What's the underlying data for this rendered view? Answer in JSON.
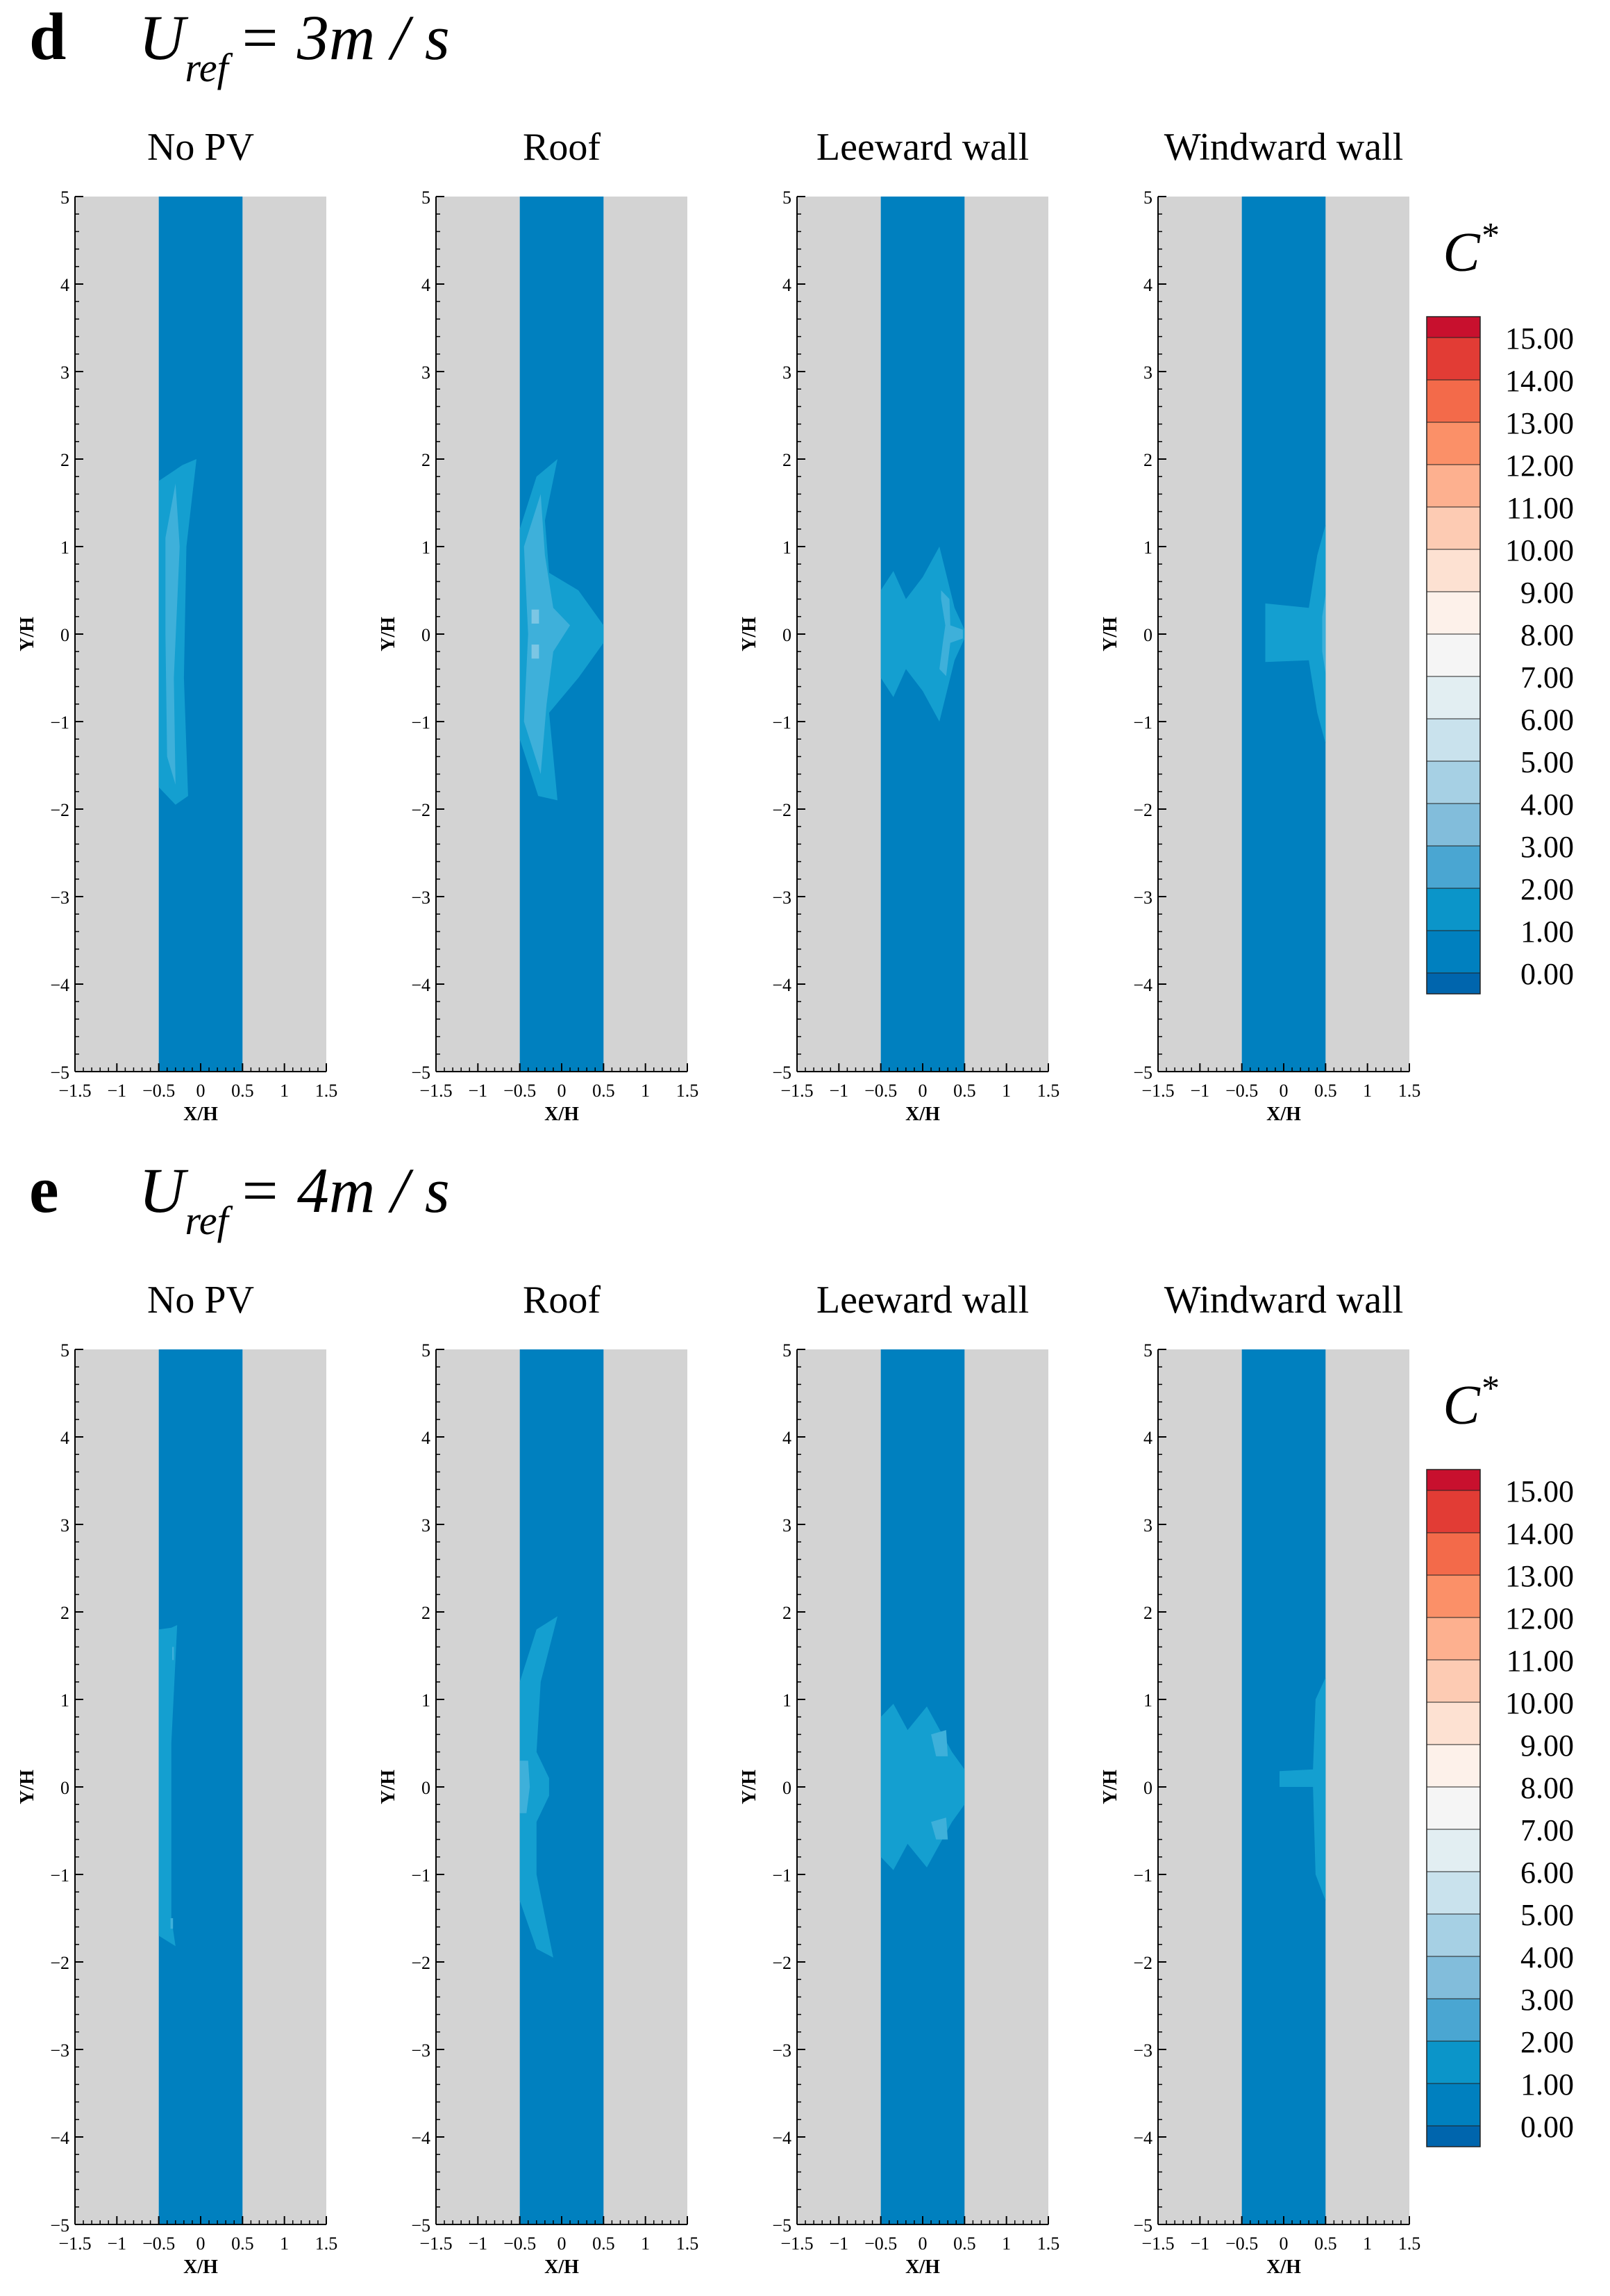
{
  "figure": {
    "sections": [
      {
        "letter": "d",
        "label_main": "U",
        "label_sub": "ref",
        "label_rest": "= 3m / s"
      },
      {
        "letter": "e",
        "label_main": "U",
        "label_sub": "ref",
        "label_rest": "= 4m / s"
      }
    ],
    "colorbar": {
      "title_main": "C",
      "title_sup": "*",
      "levels": [
        "15.00",
        "14.00",
        "13.00",
        "12.00",
        "11.00",
        "10.00",
        "9.00",
        "8.00",
        "7.00",
        "6.00",
        "5.00",
        "4.00",
        "3.00",
        "2.00",
        "1.00",
        "0.00"
      ],
      "colors": [
        "#c8102e",
        "#e23c35",
        "#f36a4a",
        "#fb9068",
        "#fdb08f",
        "#fdcbb3",
        "#fde1d2",
        "#fdf1ea",
        "#f5f5f5",
        "#e2eef2",
        "#c9e2ed",
        "#a6d0e4",
        "#82bddb",
        "#4aa6d2",
        "#0b95c9",
        "#0080bf",
        "#0065ad"
      ]
    },
    "colors": {
      "building": "#d3d3d3",
      "street": "#0080bf",
      "contour_low": "#149fd0",
      "contour_mid": "#3eb0da",
      "contour_high": "#7cc6e4"
    }
  },
  "chart_data": [
    {
      "type": "heatmap",
      "title": "U_ref = 3m / s",
      "cases": [
        "No PV",
        "Roof",
        "Leeward wall",
        "Windward wall"
      ],
      "xlabel": "X/H",
      "ylabel": "Y/H",
      "xlim": [
        -1.5,
        1.5
      ],
      "ylim": [
        -5,
        5
      ],
      "xticks": [
        "−1.5",
        "−1",
        "−0.5",
        "0",
        "0.5",
        "1",
        "1.5"
      ],
      "yticks": [
        "5",
        "4",
        "3",
        "2",
        "1",
        "0",
        "−1",
        "−2",
        "−3",
        "−4",
        "−5"
      ],
      "street_x_range": [
        -0.5,
        0.5
      ],
      "variable": "C*",
      "peak_concentration_band_by_case": [
        "2.00-3.00",
        "2.00-3.00",
        "1.00-3.00",
        "1.00-2.00"
      ]
    },
    {
      "type": "heatmap",
      "title": "U_ref = 4m / s",
      "cases": [
        "No PV",
        "Roof",
        "Leeward wall",
        "Windward wall"
      ],
      "xlabel": "X/H",
      "ylabel": "Y/H",
      "xlim": [
        -1.5,
        1.5
      ],
      "ylim": [
        -5,
        5
      ],
      "xticks": [
        "−1.5",
        "−1",
        "−0.5",
        "0",
        "0.5",
        "1",
        "1.5"
      ],
      "yticks": [
        "5",
        "4",
        "3",
        "2",
        "1",
        "0",
        "−1",
        "−2",
        "−3",
        "−4",
        "−5"
      ],
      "street_x_range": [
        -0.5,
        0.5
      ],
      "variable": "C*",
      "peak_concentration_band_by_case": [
        "1.00-3.00",
        "1.00-3.00",
        "1.00-3.00",
        "1.00-2.00"
      ]
    }
  ]
}
